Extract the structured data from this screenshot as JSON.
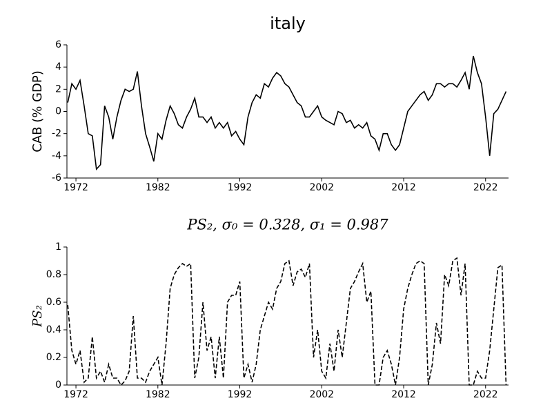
{
  "chart_data": [
    {
      "type": "line",
      "title": "italy",
      "ylabel": "CAB (% GDP)",
      "xlim": [
        1970.9,
        2024.8
      ],
      "xticks": [
        1972,
        1982,
        1992,
        2002,
        2012,
        2022
      ],
      "ylim": [
        -6,
        6
      ],
      "yticks": [
        -6,
        -4,
        -2,
        0,
        2,
        4,
        6
      ],
      "x": [
        1971,
        1971.5,
        1972,
        1972.5,
        1973,
        1973.5,
        1974,
        1974.5,
        1975,
        1975.5,
        1976,
        1976.5,
        1977,
        1977.5,
        1978,
        1978.5,
        1979,
        1979.5,
        1980,
        1980.5,
        1981,
        1981.5,
        1982,
        1982.5,
        1983,
        1983.5,
        1984,
        1984.5,
        1985,
        1985.5,
        1986,
        1986.5,
        1987,
        1987.5,
        1988,
        1988.5,
        1989,
        1989.5,
        1990,
        1990.5,
        1991,
        1991.5,
        1992,
        1992.5,
        1993,
        1993.5,
        1994,
        1994.5,
        1995,
        1995.5,
        1996,
        1996.5,
        1997,
        1997.5,
        1998,
        1998.5,
        1999,
        1999.5,
        2000,
        2000.5,
        2001,
        2001.5,
        2002,
        2002.5,
        2003,
        2003.5,
        2004,
        2004.5,
        2005,
        2005.5,
        2006,
        2006.5,
        2007,
        2007.5,
        2008,
        2008.5,
        2009,
        2009.5,
        2010,
        2010.5,
        2011,
        2011.5,
        2012,
        2012.5,
        2013,
        2013.5,
        2014,
        2014.5,
        2015,
        2015.5,
        2016,
        2016.5,
        2017,
        2017.5,
        2018,
        2018.5,
        2019,
        2019.5,
        2020,
        2020.5,
        2021,
        2021.5,
        2022,
        2022.5,
        2023,
        2023.5,
        2024,
        2024.5
      ],
      "series": [
        {
          "color": "#000000",
          "dash": "solid",
          "values": [
            0.8,
            2.5,
            2.0,
            2.8,
            0.5,
            -2.0,
            -2.2,
            -5.2,
            -4.8,
            0.5,
            -0.5,
            -2.5,
            -0.5,
            1.0,
            2.0,
            1.8,
            2.0,
            3.6,
            0.5,
            -2.0,
            -3.2,
            -4.5,
            -2.0,
            -2.5,
            -0.8,
            0.5,
            -0.2,
            -1.2,
            -1.5,
            -0.5,
            0.2,
            1.2,
            -0.5,
            -0.5,
            -1.0,
            -0.5,
            -1.5,
            -1.0,
            -1.5,
            -1.0,
            -2.2,
            -1.8,
            -2.5,
            -3.0,
            -0.5,
            0.8,
            1.5,
            1.2,
            2.5,
            2.2,
            3.0,
            3.5,
            3.2,
            2.5,
            2.2,
            1.5,
            0.8,
            0.5,
            -0.5,
            -0.5,
            0.0,
            0.5,
            -0.5,
            -0.8,
            -1.0,
            -1.2,
            0.0,
            -0.2,
            -1.0,
            -0.8,
            -1.5,
            -1.2,
            -1.5,
            -1.0,
            -2.2,
            -2.5,
            -3.5,
            -2.0,
            -2.0,
            -3.0,
            -3.5,
            -3.0,
            -1.5,
            0.0,
            0.5,
            1.0,
            1.5,
            1.8,
            1.0,
            1.5,
            2.5,
            2.5,
            2.2,
            2.5,
            2.5,
            2.2,
            2.8,
            3.5,
            2.0,
            5.0,
            3.5,
            2.5,
            -0.5,
            -4.0,
            -0.2,
            0.2,
            1.0,
            1.8
          ]
        }
      ]
    },
    {
      "type": "line",
      "title": "PS₂, σ₀ = 0.328, σ₁ = 0.987",
      "ylabel": "PS₂",
      "xlim": [
        1970.9,
        2024.8
      ],
      "xticks": [
        1972,
        1982,
        1992,
        2002,
        2012,
        2022
      ],
      "ylim": [
        0,
        1
      ],
      "yticks": [
        0,
        0.2,
        0.4,
        0.6,
        0.8,
        1
      ],
      "x": [
        1971,
        1971.5,
        1972,
        1972.5,
        1973,
        1973.5,
        1974,
        1974.5,
        1975,
        1975.5,
        1976,
        1976.5,
        1977,
        1977.5,
        1978,
        1978.5,
        1979,
        1979.5,
        1980,
        1980.5,
        1981,
        1981.5,
        1982,
        1982.5,
        1983,
        1983.5,
        1984,
        1984.5,
        1985,
        1985.5,
        1986,
        1986.5,
        1987,
        1987.5,
        1988,
        1988.5,
        1989,
        1989.5,
        1990,
        1990.5,
        1991,
        1991.5,
        1992,
        1992.5,
        1993,
        1993.5,
        1994,
        1994.5,
        1995,
        1995.5,
        1996,
        1996.5,
        1997,
        1997.5,
        1998,
        1998.5,
        1999,
        1999.5,
        2000,
        2000.5,
        2001,
        2001.5,
        2002,
        2002.5,
        2003,
        2003.5,
        2004,
        2004.5,
        2005,
        2005.5,
        2006,
        2006.5,
        2007,
        2007.5,
        2008,
        2008.5,
        2009,
        2009.5,
        2010,
        2010.5,
        2011,
        2011.5,
        2012,
        2012.5,
        2013,
        2013.5,
        2014,
        2014.5,
        2015,
        2015.5,
        2016,
        2016.5,
        2017,
        2017.5,
        2018,
        2018.5,
        2019,
        2019.5,
        2020,
        2020.5,
        2021,
        2021.5,
        2022,
        2022.5,
        2023,
        2023.5,
        2024,
        2024.5
      ],
      "series": [
        {
          "color": "#000000",
          "dash": "dashed",
          "values": [
            0.58,
            0.25,
            0.15,
            0.25,
            0.02,
            0.05,
            0.35,
            0.05,
            0.1,
            0.02,
            0.15,
            0.05,
            0.05,
            0.0,
            0.03,
            0.1,
            0.5,
            0.05,
            0.05,
            0.02,
            0.1,
            0.15,
            0.2,
            0.0,
            0.3,
            0.7,
            0.8,
            0.85,
            0.88,
            0.86,
            0.88,
            0.05,
            0.2,
            0.6,
            0.25,
            0.35,
            0.05,
            0.35,
            0.05,
            0.6,
            0.65,
            0.65,
            0.75,
            0.05,
            0.15,
            0.02,
            0.15,
            0.4,
            0.5,
            0.6,
            0.55,
            0.7,
            0.75,
            0.88,
            0.9,
            0.72,
            0.82,
            0.84,
            0.78,
            0.88,
            0.2,
            0.4,
            0.1,
            0.05,
            0.3,
            0.1,
            0.4,
            0.2,
            0.45,
            0.7,
            0.75,
            0.82,
            0.88,
            0.6,
            0.68,
            0.0,
            0.0,
            0.2,
            0.25,
            0.15,
            0.0,
            0.2,
            0.55,
            0.7,
            0.8,
            0.88,
            0.9,
            0.88,
            0.0,
            0.15,
            0.45,
            0.3,
            0.8,
            0.72,
            0.9,
            0.92,
            0.65,
            0.88,
            0.0,
            0.0,
            0.1,
            0.05,
            0.05,
            0.25,
            0.55,
            0.85,
            0.87,
            0.0
          ]
        }
      ]
    }
  ]
}
